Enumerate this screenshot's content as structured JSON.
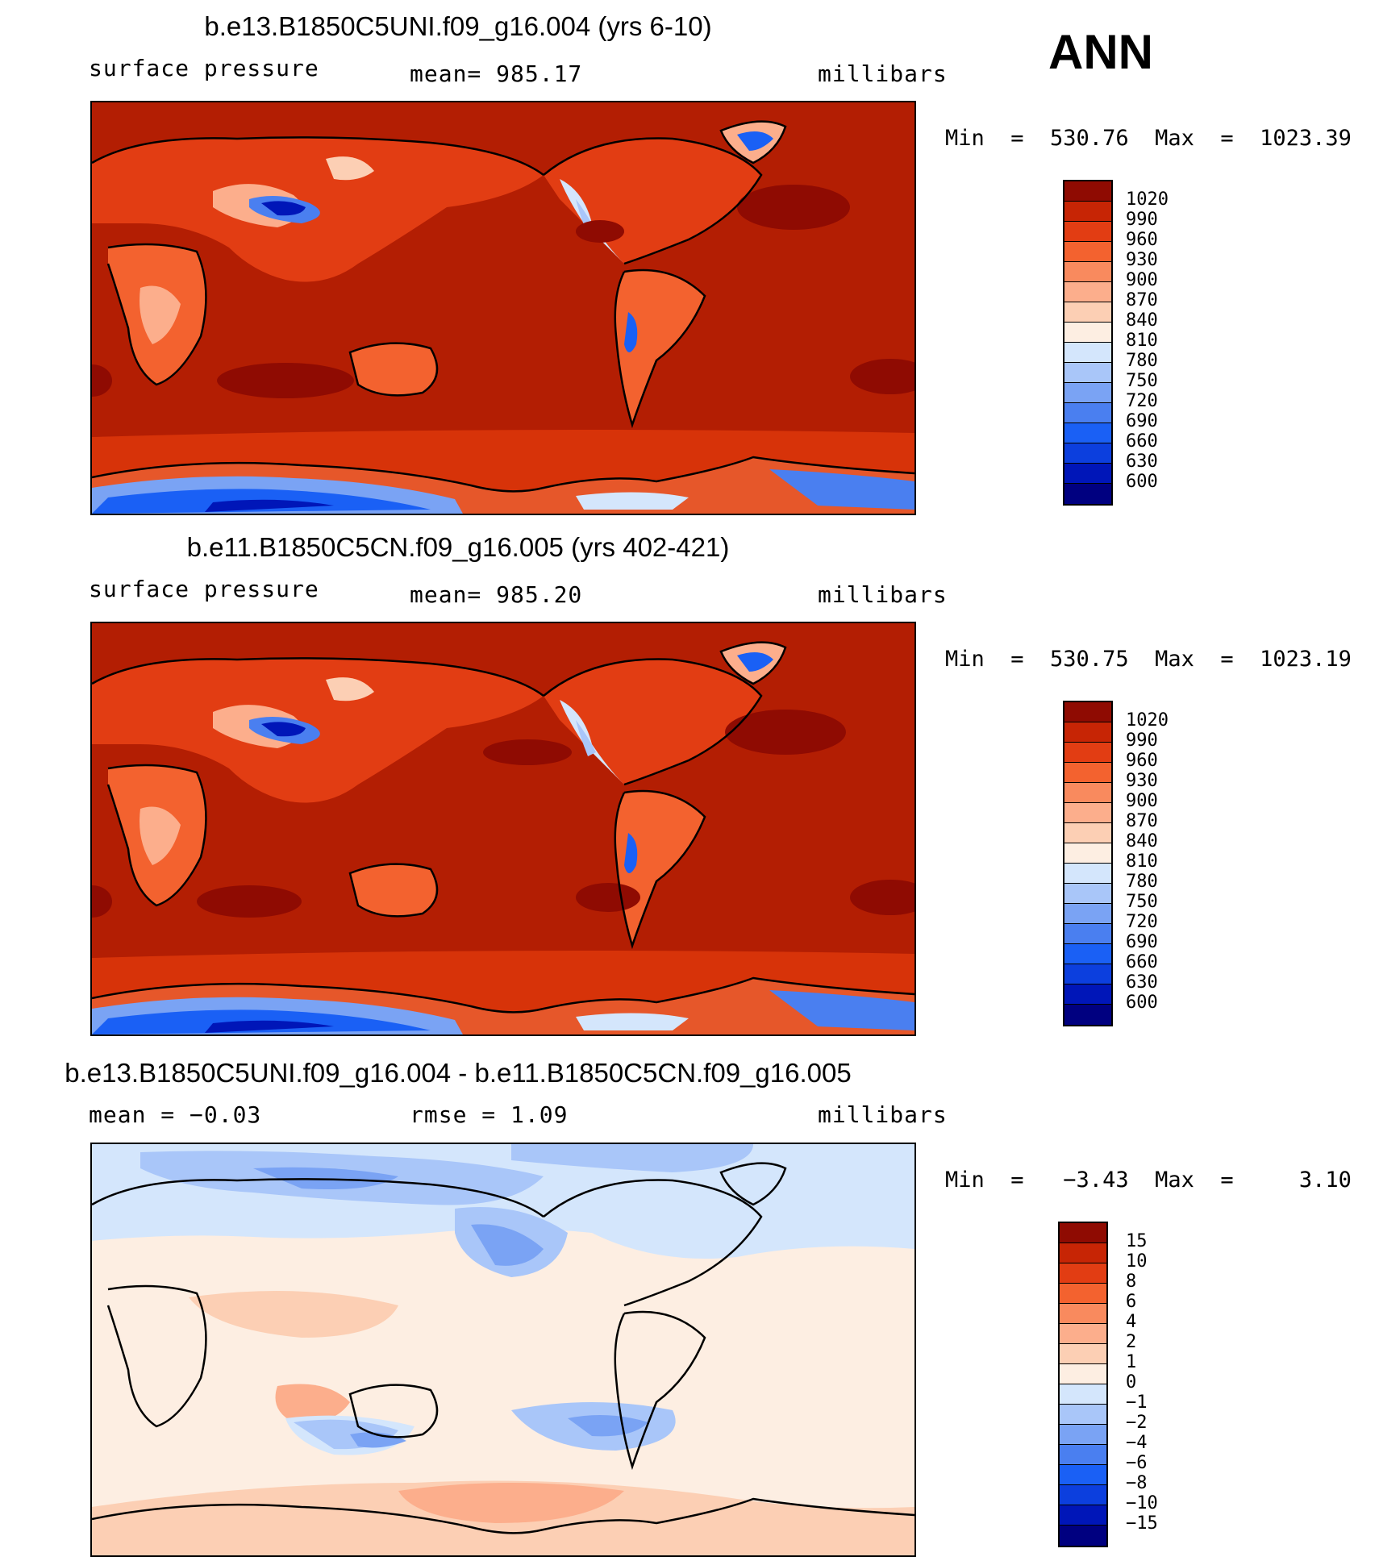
{
  "season": "ANN",
  "palette": {
    "abs": [
      "#000080",
      "#0016b8",
      "#0c3fde",
      "#1a60f5",
      "#4a7ff0",
      "#7aa3f4",
      "#a9c6f9",
      "#d4e6fc",
      "#fdeee2",
      "#fccfb4",
      "#fcae8c",
      "#f98a5e",
      "#f3622f",
      "#e23d13",
      "#c72505",
      "#8f0b02"
    ],
    "diff": [
      "#000080",
      "#0016b8",
      "#0c3fde",
      "#1a60f5",
      "#4a7ff0",
      "#7aa3f4",
      "#a9c6f9",
      "#d4e6fc",
      "#fdeee2",
      "#fccfb4",
      "#fcae8c",
      "#f98a5e",
      "#f3622f",
      "#e23d13",
      "#c72505",
      "#8f0b02"
    ]
  },
  "panels": [
    {
      "title": "b.e13.B1850C5UNI.f09_g16.004 (yrs 6-10)",
      "left_label": "surface  pressure",
      "center_label": "mean=  985.17",
      "right_label": "millibars",
      "minmax": "Min  =  530.76  Max  =  1023.39",
      "cbar_labels": [
        "1020",
        "990",
        "960",
        "930",
        "900",
        "870",
        "840",
        "810",
        "780",
        "750",
        "720",
        "690",
        "660",
        "630",
        "600"
      ],
      "kind": "abs"
    },
    {
      "title": "b.e11.B1850C5CN.f09_g16.005 (yrs 402-421)",
      "left_label": "surface  pressure",
      "center_label": "mean=  985.20",
      "right_label": "millibars",
      "minmax": "Min  =  530.75  Max  =  1023.19",
      "cbar_labels": [
        "1020",
        "990",
        "960",
        "930",
        "900",
        "870",
        "840",
        "810",
        "780",
        "750",
        "720",
        "690",
        "660",
        "630",
        "600"
      ],
      "kind": "abs"
    },
    {
      "title": "b.e13.B1850C5UNI.f09_g16.004 - b.e11.B1850C5CN.f09_g16.005",
      "left_label": "mean  =    −0.03",
      "center_label": "rmse  =     1.09",
      "right_label": "millibars",
      "minmax": "Min  =   −3.43  Max  =     3.10",
      "cbar_labels": [
        "15",
        "10",
        "8",
        "6",
        "4",
        "2",
        "1",
        "0",
        "−1",
        "−2",
        "−4",
        "−6",
        "−8",
        "−10",
        "−15"
      ],
      "kind": "diff"
    }
  ]
}
